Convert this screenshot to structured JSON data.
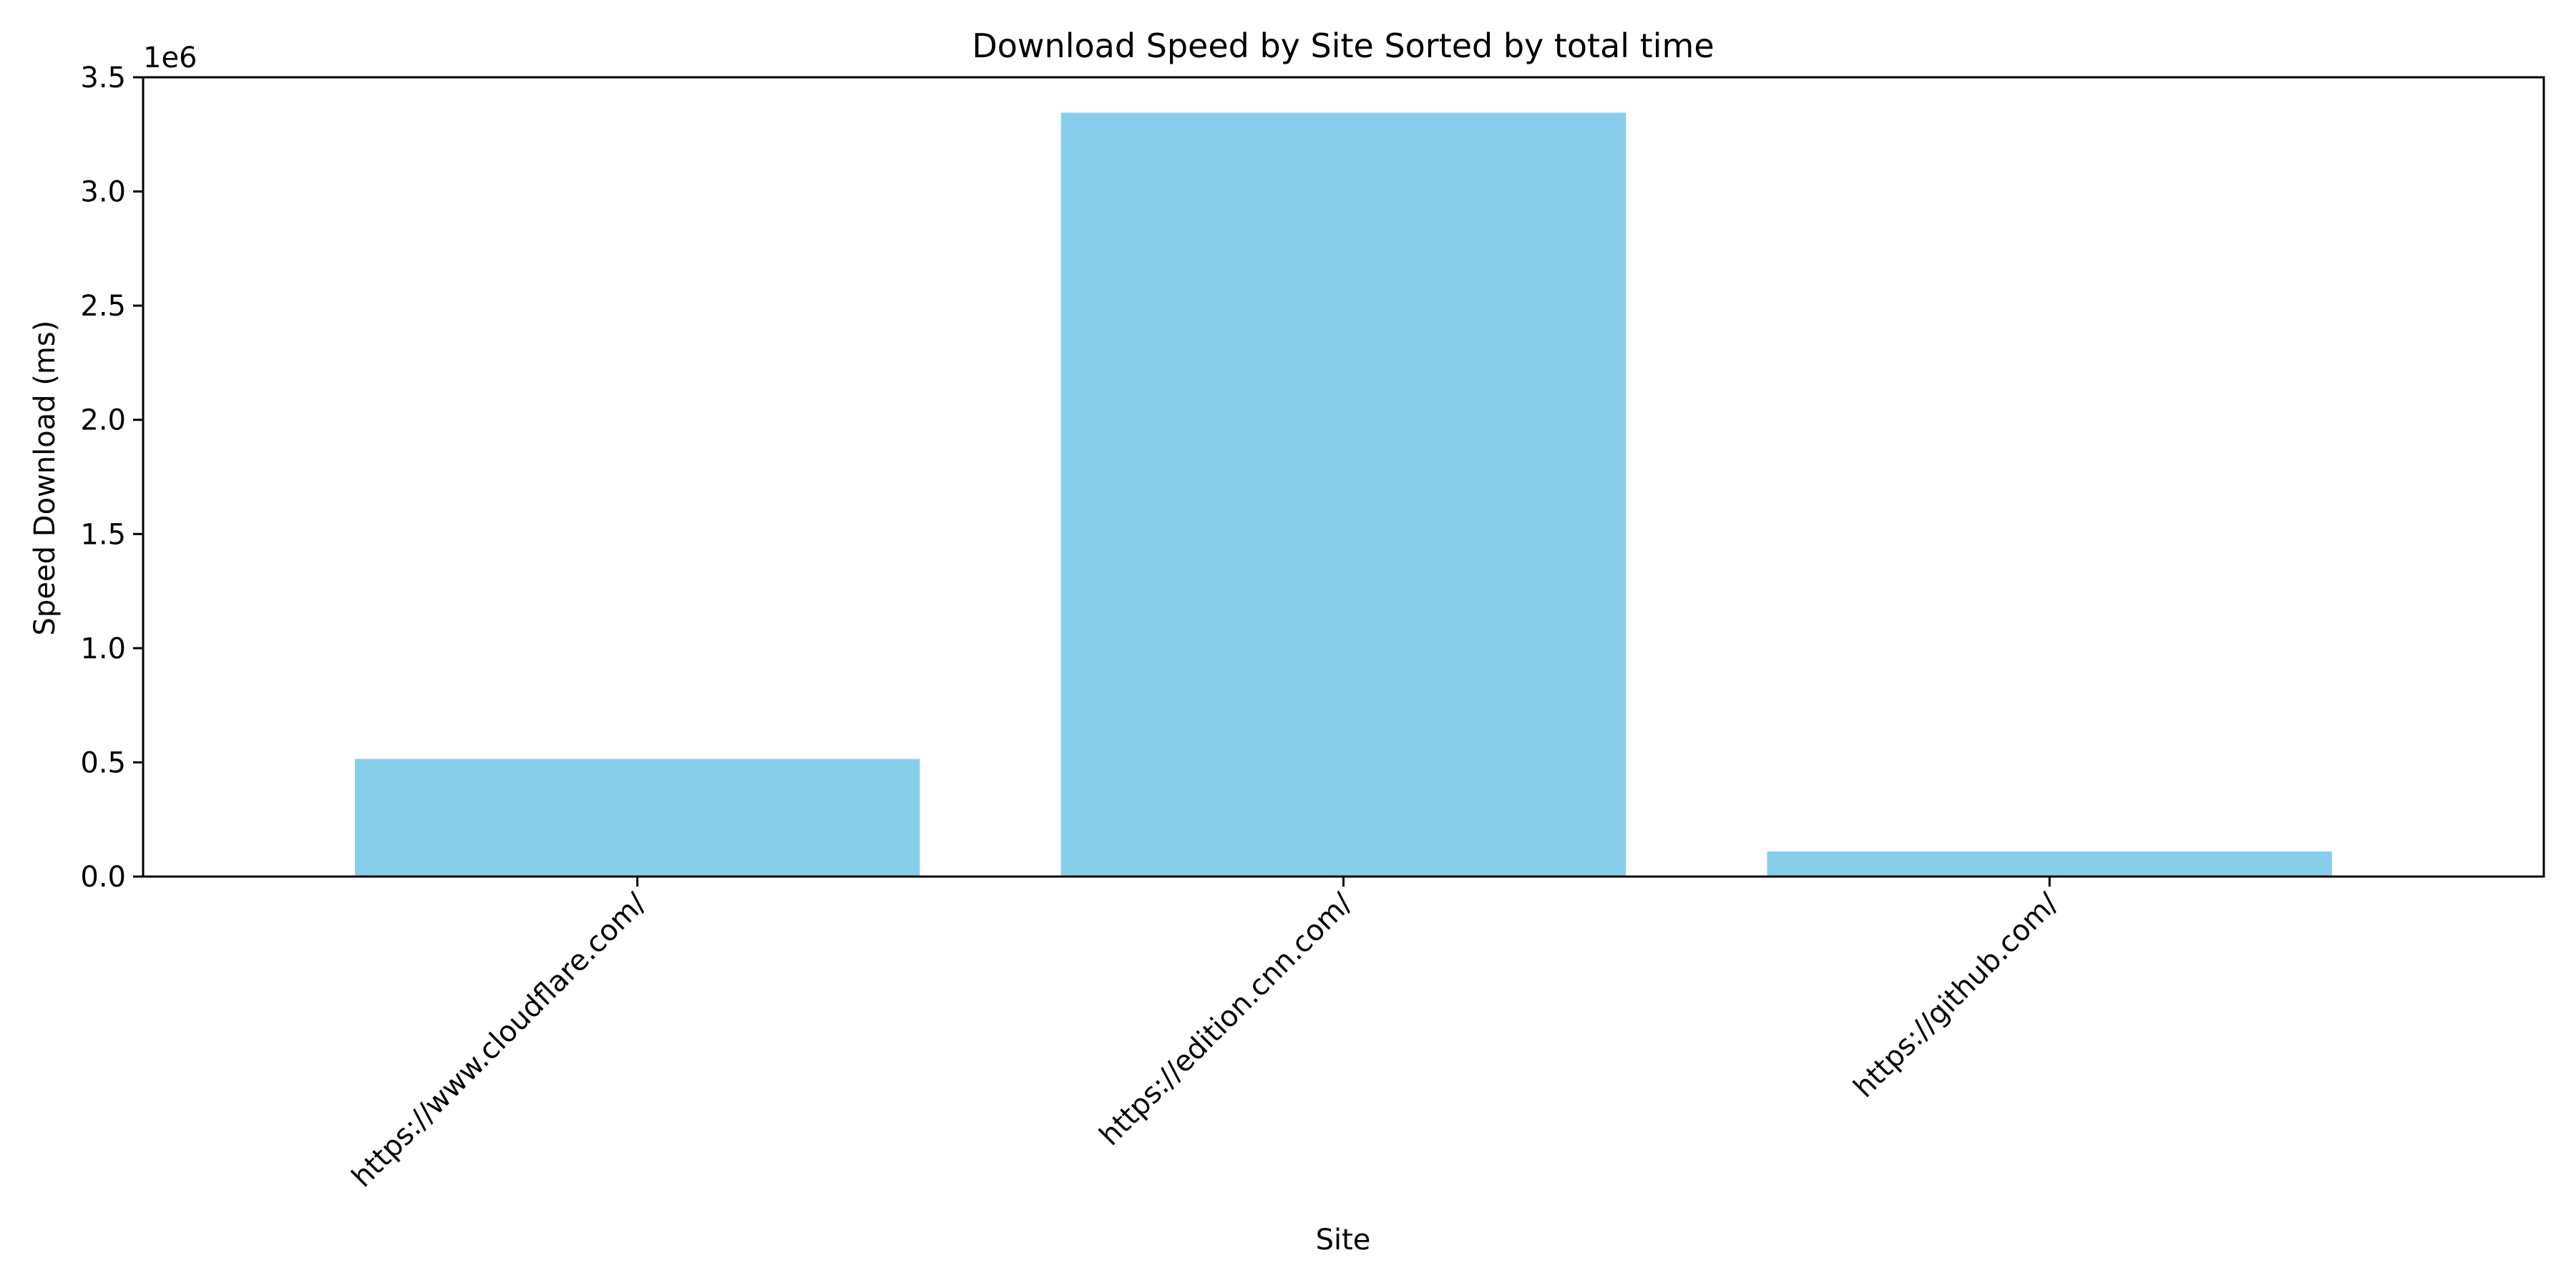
{
  "chart_data": {
    "type": "bar",
    "title": "Download Speed by Site Sorted by total time",
    "xlabel": "Site",
    "ylabel": "Speed Download (ms)",
    "offset_label": "1e6",
    "categories": [
      "https://www.cloudflare.com/",
      "https://edition.cnn.com/",
      "https://github.com/"
    ],
    "values": [
      515000,
      3345000,
      110000
    ],
    "ylim": [
      0,
      3500000
    ],
    "yticks": [
      0,
      500000,
      1000000,
      1500000,
      2000000,
      2500000,
      3000000,
      3500000
    ],
    "ytick_labels": [
      "0.0",
      "0.5",
      "1.0",
      "1.5",
      "2.0",
      "2.5",
      "3.0",
      "3.5"
    ],
    "bar_color": "#87ceeb",
    "grid": false,
    "legend": "none"
  }
}
